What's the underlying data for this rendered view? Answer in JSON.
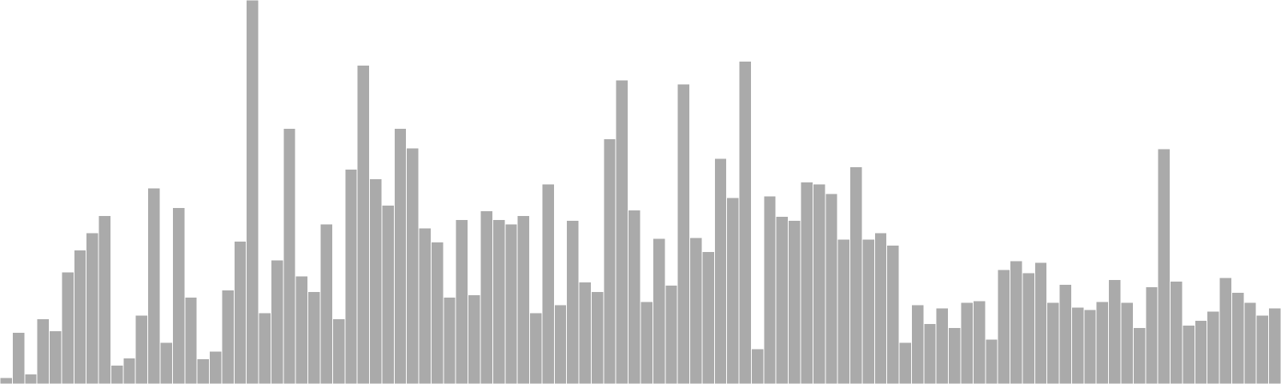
{
  "chart_data": {
    "type": "bar",
    "title": "",
    "xlabel": "",
    "ylabel": "",
    "grid": false,
    "axes_visible": false,
    "bar_color": "#aaaaaa",
    "edge_color": "#ffffff",
    "background_color": "#ffffff",
    "ylim": [
      0,
      470
    ],
    "values": [
      8,
      63,
      12,
      80,
      65,
      137,
      164,
      185,
      206,
      23,
      32,
      84,
      240,
      51,
      216,
      106,
      31,
      40,
      115,
      175,
      480,
      87,
      152,
      313,
      132,
      113,
      196,
      80,
      263,
      390,
      251,
      219,
      313,
      289,
      191,
      174,
      106,
      201,
      109,
      212,
      201,
      196,
      206,
      87,
      245,
      97,
      200,
      125,
      113,
      300,
      372,
      213,
      101,
      178,
      121,
      367,
      179,
      162,
      276,
      228,
      395,
      43,
      230,
      205,
      200,
      247,
      245,
      233,
      177,
      266,
      177,
      185,
      170,
      51,
      97,
      74,
      93,
      69,
      100,
      102,
      55,
      140,
      151,
      136,
      149,
      100,
      122,
      94,
      91,
      101,
      128,
      100,
      69,
      119,
      288,
      126,
      72,
      78,
      89,
      130,
      112,
      100,
      84,
      93
    ]
  }
}
